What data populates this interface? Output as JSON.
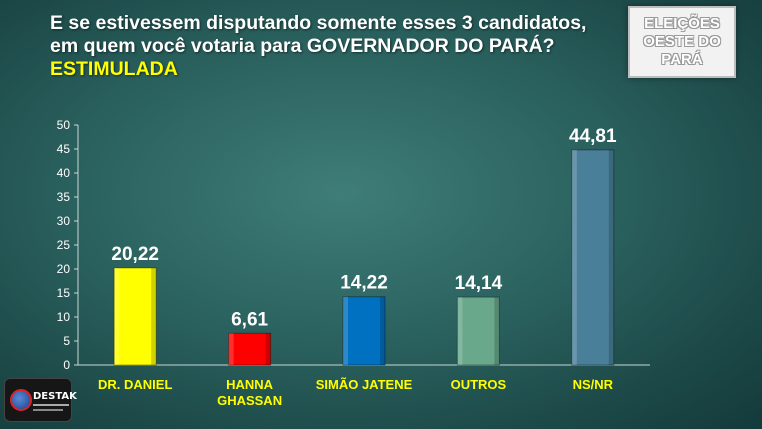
{
  "header": {
    "title_main": "E se estivessem disputando somente esses 3 candidatos, em quem você votaria para GOVERNADOR DO PARÁ?",
    "title_highlight": "ESTIMULADA"
  },
  "badge": {
    "line1": "ELEIÇÕES",
    "line2": "OESTE DO",
    "line3": "PARÁ"
  },
  "logo": {
    "text": "DESTAK"
  },
  "chart_data": {
    "type": "bar",
    "categories": [
      "DR. DANIEL",
      "HANNA GHASSAN",
      "SIMÃO JATENE",
      "OUTROS",
      "NS/NR"
    ],
    "category_lines": [
      [
        "DR. DANIEL"
      ],
      [
        "HANNA",
        "GHASSAN"
      ],
      [
        "SIMÃO JATENE"
      ],
      [
        "OUTROS"
      ],
      [
        "NS/NR"
      ]
    ],
    "values": [
      20.22,
      6.61,
      14.22,
      14.14,
      44.81
    ],
    "data_labels": [
      "20,22",
      "6,61",
      "14,22",
      "14,14",
      "44,81"
    ],
    "colors": [
      "#ffff00",
      "#ff0000",
      "#0070c0",
      "#6aa88c",
      "#4a7f99"
    ],
    "ylim": [
      0,
      50
    ],
    "yticks": [
      0,
      5,
      10,
      15,
      20,
      25,
      30,
      35,
      40,
      45,
      50
    ],
    "grid": false,
    "xlabel": "",
    "ylabel": ""
  }
}
